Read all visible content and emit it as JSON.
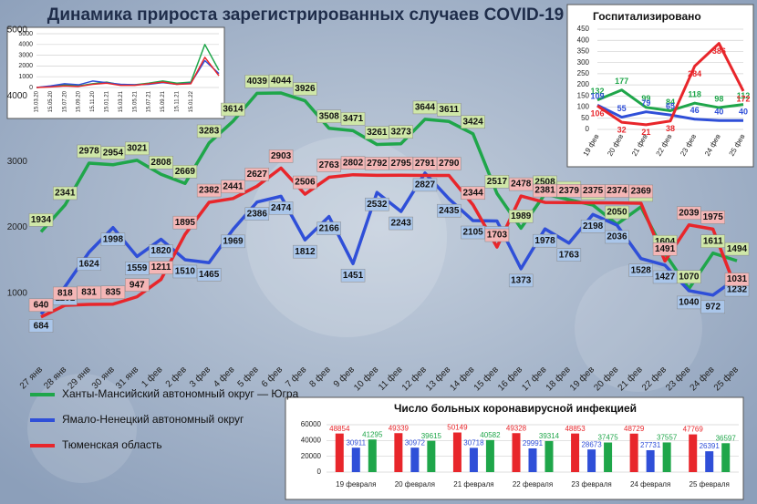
{
  "chart_data": [
    {
      "type": "line",
      "title": "Динамика прироста зарегистрированных случаев COVID-19",
      "categories": [
        "27 янв",
        "28 янв",
        "29 янв",
        "30 янв",
        "31 янв",
        "1 фев",
        "2 фев",
        "3 фев",
        "4 фев",
        "5 фев",
        "6 фев",
        "7 фев",
        "8 фев",
        "9 фев",
        "10 фев",
        "11 фев",
        "12 фев",
        "13 фев",
        "14 фев",
        "15 фев",
        "16 фев",
        "17 фев",
        "18 фев",
        "19 фев",
        "20 фев",
        "21 фев",
        "22 фев",
        "23 фев",
        "24 фев",
        "25 фев"
      ],
      "series": [
        {
          "name": "Ханты-Мансийский автономный округ — Югра",
          "color": "#1fa64a",
          "values": [
            1934,
            2341,
            2978,
            2954,
            3021,
            2808,
            2669,
            3283,
            3614,
            4039,
            4044,
            3926,
            3508,
            3471,
            3261,
            3273,
            3644,
            3611,
            3424,
            2517,
            1989,
            2508,
            2422,
            2341,
            2050,
            2314,
            1604,
            1070,
            1611,
            1494
          ]
        },
        {
          "name": "Ямало-Ненецкий автономный округ",
          "color": "#2f4fd8",
          "values": [
            684,
            1101,
            1624,
            1998,
            1559,
            1820,
            1510,
            1465,
            1969,
            2386,
            2474,
            1812,
            2166,
            1451,
            2532,
            2243,
            2827,
            2435,
            2105,
            2098,
            1373,
            1978,
            1763,
            2198,
            2036,
            1528,
            1427,
            1040,
            972,
            1232
          ]
        },
        {
          "name": "Тюменская область",
          "color": "#e8262b",
          "values": [
            640,
            818,
            831,
            835,
            947,
            1211,
            1895,
            2382,
            2441,
            2627,
            2903,
            2506,
            2763,
            2802,
            2792,
            2795,
            2791,
            2790,
            2344,
            1703,
            2478,
            2381,
            2379,
            2375,
            2374,
            2369,
            1491,
            2039,
            1975,
            1031
          ]
        }
      ],
      "ylim": [
        0,
        5000
      ],
      "yticks": [
        1000,
        2000,
        3000,
        4000,
        5000
      ],
      "grid": false
    },
    {
      "type": "line",
      "categories": [
        "15.03.20",
        "15.05.20",
        "15.07.20",
        "15.09.20",
        "15.11.20",
        "15.01.21",
        "15.03.21",
        "15.05.21",
        "15.07.21",
        "15.09.21",
        "15.11.21",
        "15.01.22",
        null,
        null
      ],
      "series": [
        {
          "color": "#1fa64a",
          "values": [
            0,
            100,
            250,
            150,
            350,
            500,
            250,
            250,
            400,
            600,
            400,
            500,
            4000,
            1600
          ]
        },
        {
          "color": "#2f4fd8",
          "values": [
            0,
            150,
            350,
            250,
            600,
            450,
            300,
            250,
            300,
            450,
            300,
            400,
            2500,
            1300
          ]
        },
        {
          "color": "#e8262b",
          "values": [
            0,
            50,
            150,
            100,
            300,
            400,
            200,
            200,
            350,
            500,
            300,
            350,
            2800,
            1100
          ]
        }
      ],
      "ylim": [
        0,
        5000
      ],
      "yticks": [
        0,
        1000,
        2000,
        3000,
        4000,
        5000
      ],
      "grid": true
    },
    {
      "type": "line",
      "title": "Госпитализировано",
      "categories": [
        "19 фев",
        "20 фев",
        "21 фев",
        "22 фев",
        "23 фев",
        "24 фев",
        "25 фев"
      ],
      "series": [
        {
          "color": "#1fa64a",
          "values": [
            132,
            177,
            99,
            84,
            118,
            98,
            112
          ]
        },
        {
          "color": "#2f4fd8",
          "values": [
            109,
            55,
            79,
            65,
            46,
            40,
            40
          ]
        },
        {
          "color": "#e8262b",
          "values": [
            106,
            32,
            21,
            38,
            284,
            386,
            172
          ]
        }
      ],
      "ylim": [
        0,
        450
      ],
      "yticks": [
        0,
        50,
        100,
        150,
        200,
        250,
        300,
        350,
        400,
        450
      ],
      "grid": true
    },
    {
      "type": "bar",
      "title": "Число больных коронавирусной инфекцией",
      "categories": [
        "19 февраля",
        "20 февраля",
        "21 февраля",
        "22 февраля",
        "23 февраля",
        "24 февраля",
        "25 февраля"
      ],
      "series": [
        {
          "color": "#e8262b",
          "values": [
            48854,
            49339,
            50149,
            49328,
            48853,
            48729,
            47769
          ]
        },
        {
          "color": "#2f4fd8",
          "values": [
            30911,
            30972,
            30718,
            29991,
            28673,
            27731,
            26391
          ]
        },
        {
          "color": "#1fa64a",
          "values": [
            41295,
            39615,
            40582,
            39314,
            37475,
            37557,
            36597
          ]
        }
      ],
      "ylim": [
        0,
        60000
      ],
      "yticks": [
        0,
        20000,
        40000,
        60000
      ],
      "grid": true
    }
  ]
}
